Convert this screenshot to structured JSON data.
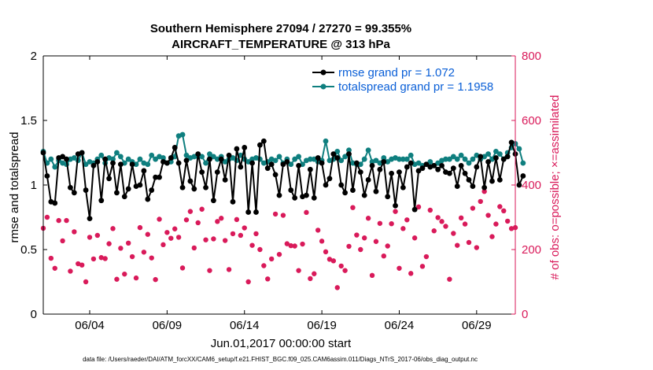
{
  "chart_data": {
    "type": "line",
    "title": "Southern Hemisphere 27094 / 27270 = 99.355%",
    "subtitle": "AIRCRAFT_TEMPERATURE @ 313 hPa",
    "xlabel": "Jun.01,2017 00:00:00 start",
    "ylabel_left": "rmse and totalspread",
    "ylabel_right": "# of obs: o=possible; ×=assimilated",
    "footer": "data file: /Users/raeder/DAI/ATM_forcXX/CAM6_setup/f.e21.FHIST_BGC.f09_025.CAM6assim.011/Diags_NTrS_2017-06/obs_diag_output.nc",
    "xlim": [
      1.0,
      31.5
    ],
    "ylim_left": [
      0,
      2
    ],
    "ylim_right": [
      0,
      800
    ],
    "x_ticks": [
      4,
      9,
      14,
      19,
      24,
      29
    ],
    "x_tick_labels": [
      "06/04",
      "06/09",
      "06/14",
      "06/19",
      "06/24",
      "06/29"
    ],
    "y_ticks_left": [
      0,
      0.5,
      1,
      1.5,
      2
    ],
    "y_tick_labels_left": [
      "0",
      "0.5",
      "1",
      "1.5",
      "2"
    ],
    "y_ticks_right": [
      0,
      200,
      400,
      600,
      800
    ],
    "y_tick_labels_right": [
      "0",
      "200",
      "400",
      "600",
      "800"
    ],
    "legend_location": "top-right",
    "colors": {
      "rmse": "#000000",
      "spread": "#0f7f7f",
      "obs": "#d91a5a",
      "legend_text": "#0a5fd7",
      "right_axis": "#d91a5a"
    },
    "series": [
      {
        "name": "rmse grand pr = 1.072",
        "axis": "left",
        "x_start": 1.0,
        "x_step": 0.25,
        "values": [
          1.25,
          1.07,
          0.87,
          0.86,
          1.21,
          1.22,
          1.2,
          0.98,
          0.94,
          1.24,
          1.25,
          0.96,
          0.74,
          1.15,
          1.18,
          0.88,
          1.2,
          1.05,
          1.17,
          0.94,
          1.16,
          0.91,
          0.97,
          1.16,
          0.99,
          1.0,
          1.11,
          0.89,
          0.96,
          1.06,
          1.06,
          1.18,
          1.17,
          1.21,
          1.29,
          1.17,
          0.98,
          1.19,
          1.03,
          0.97,
          1.24,
          1.1,
          0.98,
          1.2,
          0.88,
          1.1,
          1.2,
          1.04,
          1.23,
          0.87,
          1.28,
          1.14,
          1.29,
          0.79,
          1.17,
          0.79,
          1.31,
          1.34,
          1.13,
          1.16,
          1.08,
          0.92,
          1.16,
          1.18,
          0.96,
          0.9,
          1.15,
          0.91,
          0.92,
          1.12,
          0.9,
          1.21,
          1.17,
          1.0,
          1.05,
          1.24,
          1.21,
          1.0,
          0.94,
          1.24,
          0.96,
          1.17,
          1.1,
          0.92,
          1.04,
          1.15,
          0.95,
          1.12,
          1.18,
          0.91,
          1.09,
          0.84,
          1.1,
          0.98,
          1.14,
          1.17,
          0.81,
          1.11,
          1.13,
          1.16,
          1.14,
          1.15,
          1.12,
          1.15,
          1.1,
          1.09,
          1.13,
          0.99,
          1.15,
          1.09,
          1.04,
          0.99,
          1.14,
          1.22,
          0.98,
          1.18,
          1.03,
          1.21,
          1.04,
          1.2,
          1.22,
          1.33,
          1.24,
          1.0,
          1.07
        ]
      },
      {
        "name": "totalspread grand pr = 1.1958",
        "axis": "left",
        "x_start": 1.0,
        "x_step": 0.25,
        "values": [
          1.26,
          1.17,
          1.2,
          1.14,
          1.19,
          1.17,
          1.16,
          1.2,
          1.21,
          1.19,
          1.25,
          1.16,
          1.18,
          1.17,
          1.2,
          1.23,
          1.17,
          1.21,
          1.2,
          1.25,
          1.22,
          1.17,
          1.2,
          1.18,
          1.16,
          1.2,
          1.17,
          1.16,
          1.23,
          1.2,
          1.22,
          1.21,
          1.17,
          1.18,
          1.22,
          1.38,
          1.39,
          1.23,
          1.21,
          1.22,
          1.22,
          1.22,
          1.17,
          1.24,
          1.22,
          1.2,
          1.22,
          1.18,
          1.2,
          1.21,
          1.19,
          1.23,
          1.2,
          1.18,
          1.2,
          1.21,
          1.2,
          1.17,
          1.18,
          1.2,
          1.19,
          1.22,
          1.17,
          1.2,
          1.16,
          1.2,
          1.22,
          1.16,
          1.19,
          1.2,
          1.2,
          1.18,
          1.19,
          1.34,
          1.19,
          1.2,
          1.26,
          1.19,
          1.22,
          1.27,
          1.17,
          1.16,
          1.16,
          1.2,
          1.27,
          1.18,
          1.19,
          1.17,
          1.21,
          1.18,
          1.2,
          1.21,
          1.2,
          1.2,
          1.2,
          1.23,
          1.16,
          1.17,
          1.15,
          1.16,
          1.18,
          1.15,
          1.17,
          1.19,
          1.2,
          1.2,
          1.22,
          1.2,
          1.23,
          1.2,
          1.17,
          1.2,
          1.23,
          1.2,
          1.22,
          1.24,
          1.2,
          1.26,
          1.24,
          1.2,
          1.25,
          1.29,
          1.32,
          1.28,
          1.17
        ]
      },
      {
        "name": "# of obs (possible/assimilated)",
        "axis": "right",
        "x_start": 1.0,
        "x_step": 0.25,
        "values": [
          266,
          300,
          173,
          142,
          290,
          227,
          290,
          133,
          255,
          156,
          152,
          100,
          238,
          171,
          244,
          175,
          172,
          218,
          265,
          108,
          204,
          124,
          220,
          178,
          112,
          268,
          192,
          247,
          174,
          107,
          294,
          215,
          253,
          235,
          264,
          238,
          143,
          292,
          318,
          205,
          283,
          325,
          230,
          135,
          233,
          287,
          297,
          228,
          138,
          249,
          293,
          244,
          267,
          100,
          213,
          249,
          200,
          150,
          109,
          171,
          310,
          185,
          306,
          218,
          212,
          211,
          135,
          217,
          315,
          110,
          125,
          260,
          226,
          193,
          170,
          165,
          82,
          149,
          135,
          210,
          330,
          245,
          200,
          236,
          297,
          120,
          225,
          281,
          180,
          211,
          280,
          318,
          142,
          265,
          292,
          126,
          236,
          332,
          148,
          178,
          322,
          258,
          299,
          287,
          272,
          108,
          250,
          213,
          298,
          279,
          222,
          328,
          206,
          349,
          380,
          306,
          240,
          279,
          333,
          320,
          288,
          265,
          268,
          261,
          0
        ]
      }
    ]
  }
}
